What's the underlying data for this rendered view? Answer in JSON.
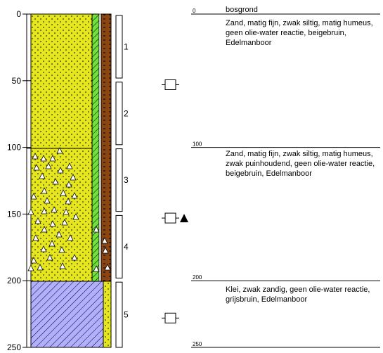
{
  "depth_axis": {
    "ticks": [
      "0",
      "50",
      "100",
      "150",
      "200",
      "250"
    ],
    "range": [
      0,
      250
    ]
  },
  "samples": [
    {
      "label": "1",
      "top": 0,
      "bottom": 48
    },
    {
      "label": "2",
      "top": 50,
      "bottom": 98
    },
    {
      "label": "3",
      "top": 100,
      "bottom": 148
    },
    {
      "label": "4",
      "top": 150,
      "bottom": 198
    },
    {
      "label": "5",
      "top": 200,
      "bottom": 250
    }
  ],
  "symbols": [
    {
      "depth": 53,
      "type": "sample-box",
      "marker": false
    },
    {
      "depth": 153,
      "type": "sample-box",
      "marker": true
    },
    {
      "depth": 228,
      "type": "sample-box",
      "marker": false
    }
  ],
  "layers": [
    {
      "depth_label": "0",
      "depth": 0,
      "title": "bosgrond",
      "description": "Zand, matig fijn, zwak siltig, matig humeus, geen olie-water reactie, beigebruin, Edelmanboor"
    },
    {
      "depth_label": "100",
      "depth": 100,
      "title": "",
      "description": "Zand, matig fijn, zwak siltig, matig humeus, zwak puinhoudend, geen olie-water reactie, beigebruin, Edelmanboor"
    },
    {
      "depth_label": "200",
      "depth": 200,
      "title": "",
      "description": "Klei, zwak zandig, geen olie-water reactie, grijsbruin, Edelmanboor"
    },
    {
      "depth_label": "250",
      "depth": 250,
      "title": "",
      "description": ""
    }
  ],
  "colors": {
    "sand": "#e6e61e",
    "clay": "#b0b0ff",
    "humus_green": "#6fe03c",
    "brown": "#8b4513"
  }
}
